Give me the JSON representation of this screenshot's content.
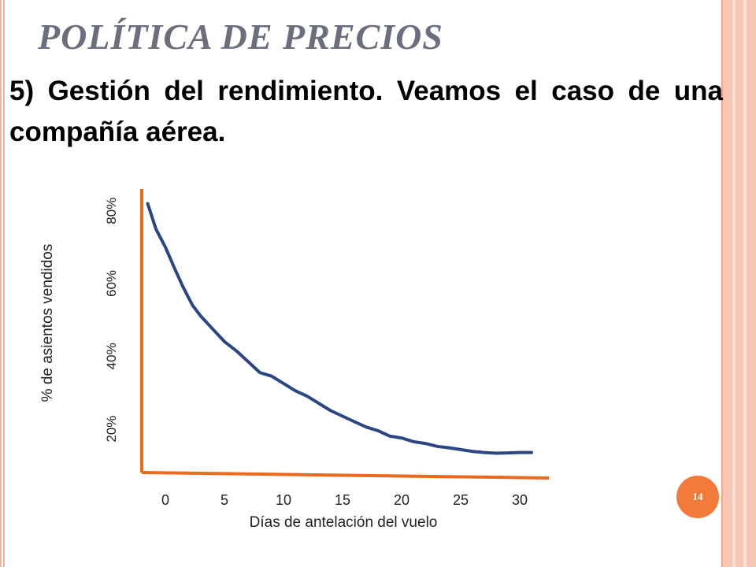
{
  "slide": {
    "title": "POLÍTICA DE PRECIOS",
    "subtitle": "5) Gestión del rendimiento. Veamos el caso de una compañía aérea.",
    "page_number": "14"
  },
  "colors": {
    "title": "#6b6e7d",
    "axis": "#ec6a1e",
    "curve": "#2b4684",
    "badge": "#f47a3a",
    "frame": "#f7c6b5"
  },
  "chart_data": {
    "type": "line",
    "xlabel": "Días de antelación del vuelo",
    "ylabel": "% de asientos vendidos",
    "x_ticks": [
      "0",
      "5",
      "10",
      "15",
      "20",
      "25",
      "30"
    ],
    "y_ticks": [
      "20%",
      "40%",
      "60%",
      "80%"
    ],
    "x_tick_values": [
      0,
      5,
      10,
      15,
      20,
      25,
      30
    ],
    "y_tick_values": [
      20,
      40,
      60,
      80
    ],
    "xlim": [
      -2,
      32
    ],
    "ylim": [
      8,
      86
    ],
    "grid": false,
    "legend": false,
    "series": [
      {
        "x": [
          -1.5,
          -0.8,
          0,
          0.8,
          1.5,
          2.3,
          3,
          4,
          5,
          6,
          7,
          8,
          9,
          10,
          11,
          12,
          13,
          14,
          15,
          16,
          17,
          18,
          19,
          20,
          21,
          22,
          23,
          24,
          25,
          26,
          27,
          28,
          29,
          30,
          31
        ],
        "y": [
          82,
          75,
          70,
          64,
          59,
          54,
          51,
          47.5,
          44,
          41.5,
          38.5,
          35.5,
          34.5,
          32.5,
          30.5,
          29,
          27,
          25,
          23.5,
          22,
          20.5,
          19.5,
          18,
          17.5,
          16.5,
          16,
          15.2,
          14.8,
          14.3,
          13.8,
          13.5,
          13.3,
          13.4,
          13.5,
          13.5
        ]
      }
    ]
  }
}
